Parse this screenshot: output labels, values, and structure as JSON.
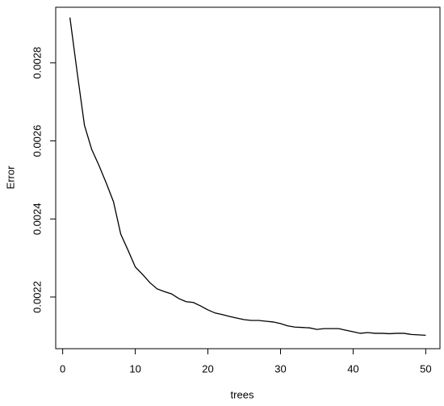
{
  "chart_data": {
    "type": "line",
    "x_label": "trees",
    "y_label": "Error",
    "x": [
      1,
      2,
      3,
      4,
      5,
      6,
      7,
      8,
      9,
      10,
      11,
      12,
      13,
      14,
      15,
      16,
      17,
      18,
      19,
      20,
      21,
      22,
      23,
      24,
      25,
      26,
      27,
      28,
      29,
      30,
      31,
      32,
      33,
      34,
      35,
      36,
      37,
      38,
      39,
      40,
      41,
      42,
      43,
      44,
      45,
      46,
      47,
      48,
      49,
      50
    ],
    "values": [
      0.002916,
      0.002775,
      0.00264,
      0.002578,
      0.002537,
      0.002492,
      0.002444,
      0.002361,
      0.00232,
      0.002277,
      0.002258,
      0.002237,
      0.002221,
      0.002214,
      0.002208,
      0.002196,
      0.002188,
      0.002186,
      0.002177,
      0.002167,
      0.002159,
      0.002155,
      0.00215,
      0.002146,
      0.002142,
      0.00214,
      0.00214,
      0.002138,
      0.002136,
      0.002132,
      0.002126,
      0.002123,
      0.002122,
      0.002121,
      0.002117,
      0.002119,
      0.002119,
      0.002119,
      0.002115,
      0.002111,
      0.002107,
      0.002109,
      0.002107,
      0.002107,
      0.002106,
      0.002107,
      0.002107,
      0.002104,
      0.002103,
      0.002102
    ],
    "color": "#000000",
    "xlim": [
      -0.96,
      51.96
    ],
    "ylim": [
      0.0020676,
      0.0029424
    ],
    "xticks": [
      0,
      10,
      20,
      30,
      40,
      50
    ],
    "yticks": [
      0.0022,
      0.0024,
      0.0026,
      0.0028
    ]
  }
}
